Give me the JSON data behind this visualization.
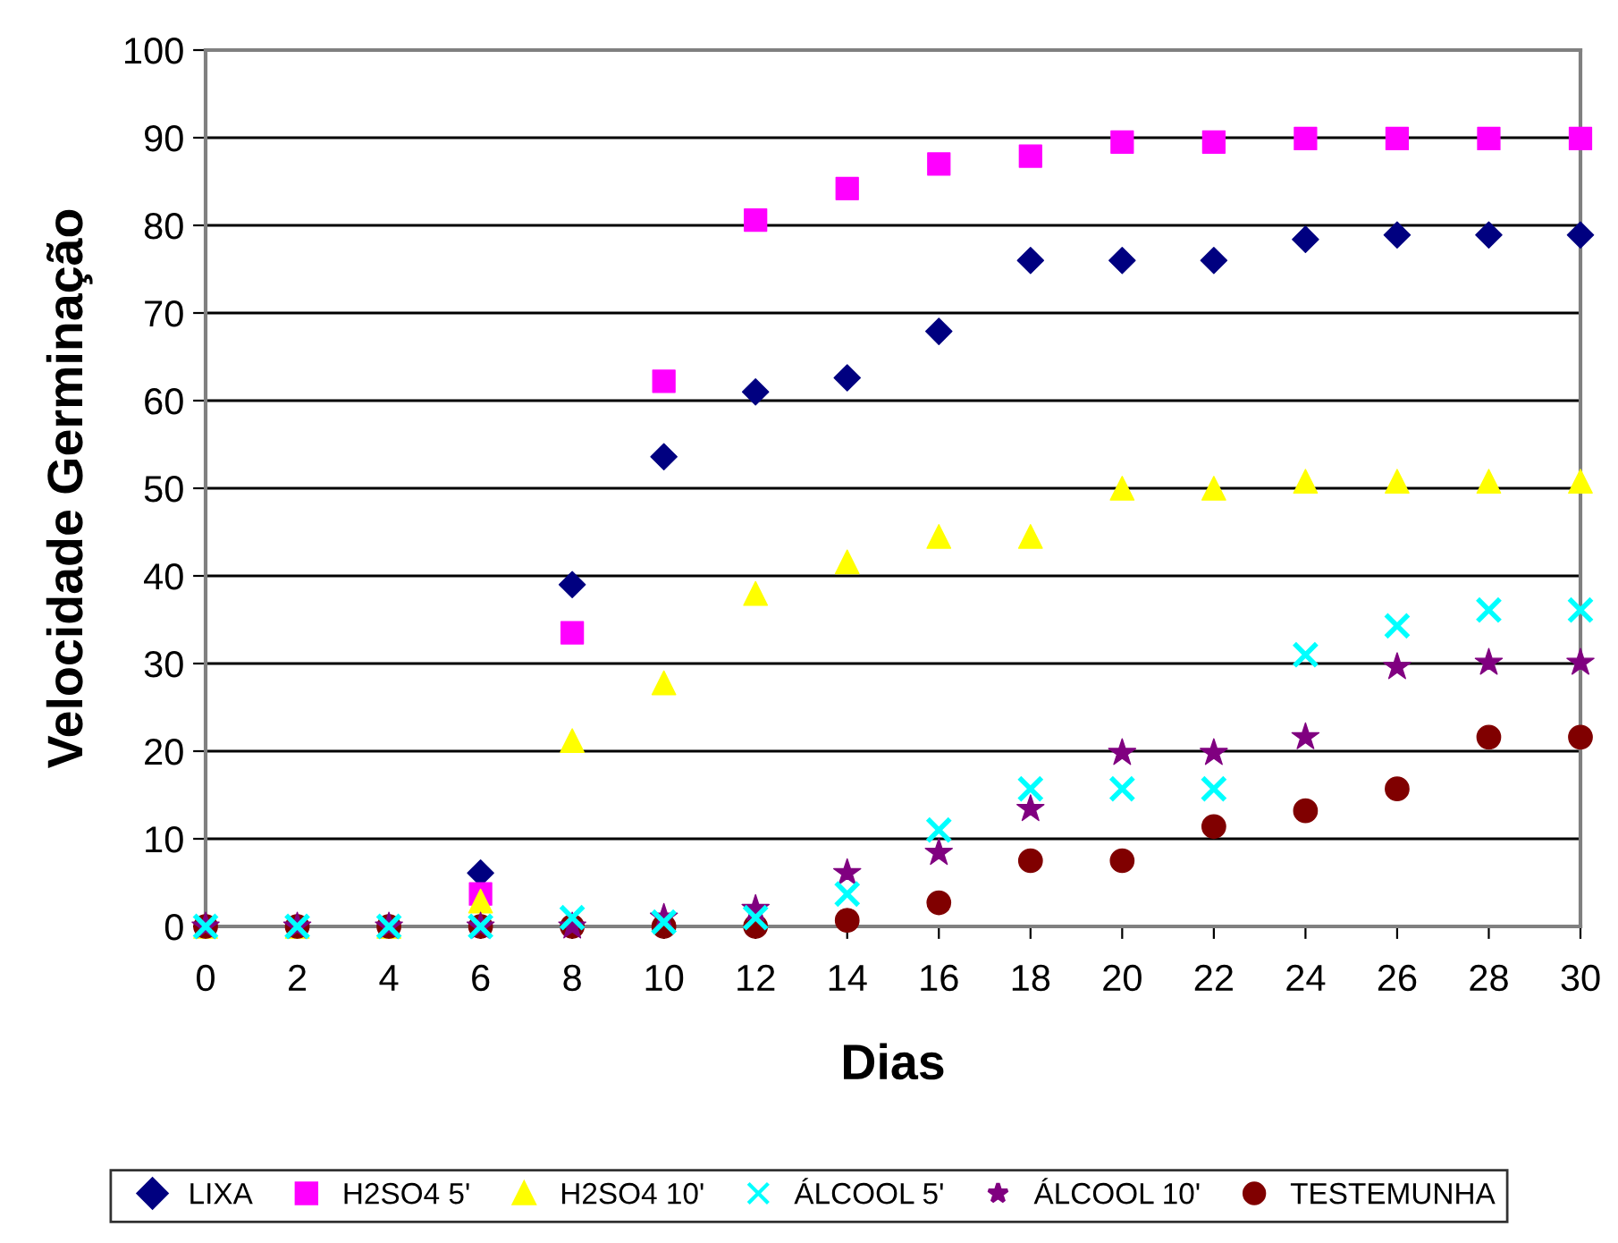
{
  "chart_data": {
    "type": "scatter",
    "xlabel": "Dias",
    "ylabel": "Velocidade Germinação",
    "x": [
      0,
      2,
      4,
      6,
      8,
      10,
      12,
      14,
      16,
      18,
      20,
      22,
      24,
      26,
      28,
      30
    ],
    "series": [
      {
        "name": "LIXA",
        "color": "#000080",
        "marker": "diamond",
        "values": [
          null,
          null,
          null,
          6.1,
          39,
          53.6,
          61,
          62.6,
          67.9,
          76,
          76,
          76,
          78.4,
          78.9,
          78.9,
          78.9
        ]
      },
      {
        "name": "H2SO4 5'",
        "color": "#ff00ff",
        "marker": "square",
        "values": [
          null,
          null,
          null,
          3.7,
          33.5,
          62.2,
          80.6,
          84.2,
          87,
          87.9,
          89.5,
          89.5,
          89.9,
          89.9,
          89.9,
          89.9
        ]
      },
      {
        "name": "H2SO4 10'",
        "color": "#ffff00",
        "marker": "triangle",
        "values": [
          0,
          0,
          0,
          2.9,
          21.2,
          27.8,
          38,
          41.6,
          44.5,
          44.5,
          50,
          50,
          50.8,
          50.8,
          50.8,
          50.8
        ]
      },
      {
        "name": "ÁLCOOL 5'",
        "color": "#00ffff",
        "marker": "cross",
        "values": [
          0,
          0,
          0,
          0,
          1,
          0.5,
          1,
          3.7,
          11,
          15.7,
          15.7,
          15.7,
          31,
          34.3,
          36.1,
          36.1
        ]
      },
      {
        "name": "ÁLCOOL 10'",
        "color": "#800080",
        "marker": "star",
        "values": [
          0,
          0,
          0,
          0,
          0,
          1,
          2,
          6.1,
          8.4,
          13.4,
          19.8,
          19.8,
          21.6,
          29.6,
          30.1,
          30.1
        ]
      },
      {
        "name": "TESTEMUNHA",
        "color": "#800000",
        "marker": "circle",
        "values": [
          0,
          0,
          0,
          0,
          0,
          0,
          0,
          0.7,
          2.7,
          7.5,
          7.5,
          11.4,
          13.2,
          15.7,
          21.6,
          21.6
        ]
      }
    ],
    "xlim": [
      0,
      30
    ],
    "xticks": [
      0,
      2,
      4,
      6,
      8,
      10,
      12,
      14,
      16,
      18,
      20,
      22,
      24,
      26,
      28,
      30
    ],
    "ylim": [
      0,
      100
    ],
    "yticks": [
      0,
      10,
      20,
      30,
      40,
      50,
      60,
      70,
      80,
      90,
      100
    ],
    "grid": "y",
    "legend": "bottom"
  }
}
